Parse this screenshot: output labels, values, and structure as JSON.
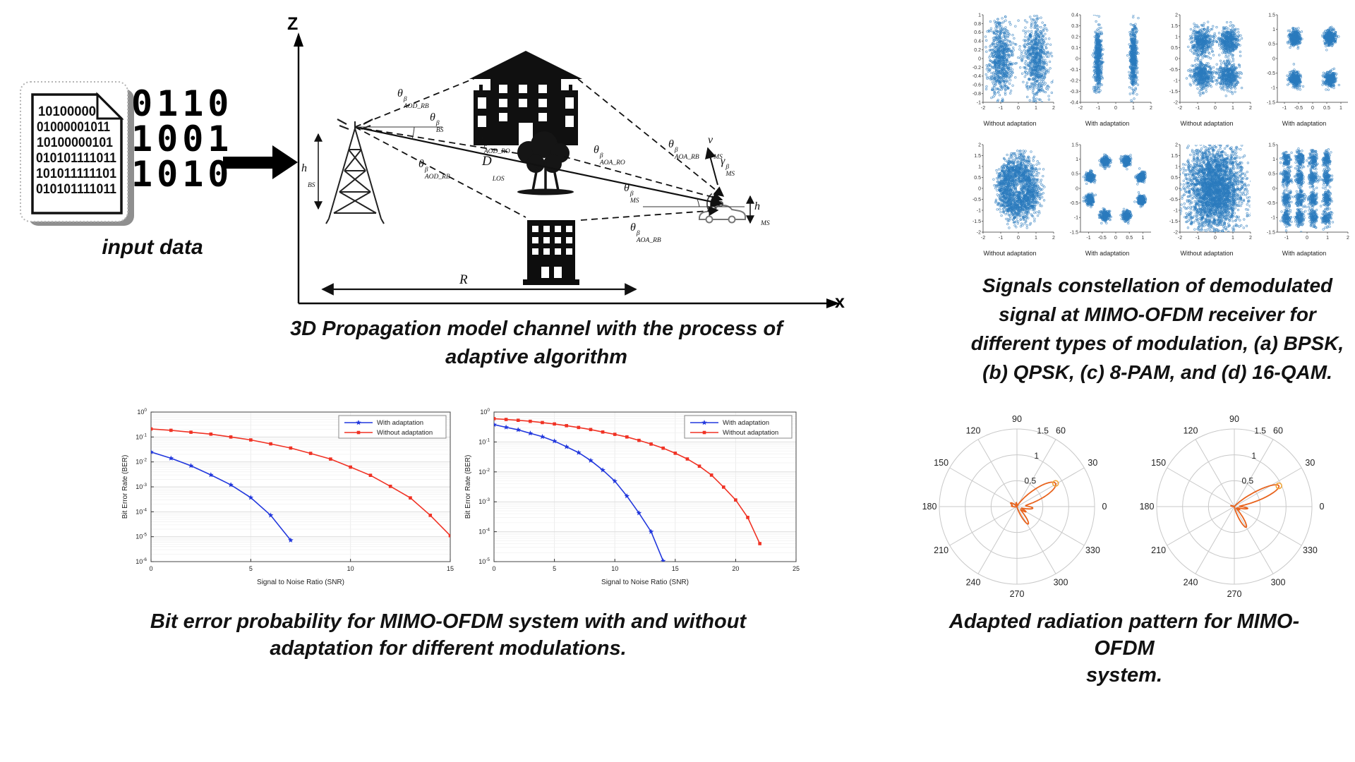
{
  "input_block": {
    "doc_lines": [
      "10100000",
      "01000001011",
      "10100000101",
      "010101111011",
      "101011111101",
      "010101111011"
    ],
    "big_bits": [
      "0110",
      "1001",
      "1010"
    ],
    "label": "input data"
  },
  "captions": {
    "diagram": [
      "3D Propagation model channel with the process of",
      "adaptive algorithm"
    ],
    "constellation": [
      "Signals constellation of demodulated",
      "signal at MIMO-OFDM receiver for",
      "different types of modulation, (a) BPSK,",
      "(b) QPSK, (c) 8-PAM, and (d) 16-QAM."
    ],
    "ber": [
      "Bit error probability for MIMO-OFDM system with and without",
      "adaptation for different modulations."
    ],
    "polar": [
      "Adapted radiation pattern for MIMO-OFDM",
      "system."
    ]
  },
  "diagram": {
    "axis": {
      "z": "Z",
      "x": "x"
    },
    "labels": {
      "aod_rb_top": {
        "base": "θ",
        "sup": "β",
        "sub": "AOD_RB"
      },
      "bs": {
        "base": "θ",
        "sup": "β",
        "sub": "BS"
      },
      "aod_ro": {
        "base": "θ",
        "sup": "β",
        "sub": "AOD_RO"
      },
      "aod_rb_bottom": {
        "base": "θ",
        "sup": "β",
        "sub": "AOD_RB"
      },
      "d_los": {
        "base": "D",
        "sup": "",
        "sub": "LOS"
      },
      "aoa_ro": {
        "base": "θ",
        "sup": "β",
        "sub": "AOA_RO"
      },
      "aoa_rb_top": {
        "base": "θ",
        "sup": "β",
        "sub": "AOA_RB"
      },
      "ms": {
        "base": "θ",
        "sup": "β",
        "sub": "MS"
      },
      "aoa_rb_bottom": {
        "base": "θ",
        "sup": "β",
        "sub": "AOA_RB"
      },
      "v_ms": {
        "base": "v",
        "sup": "",
        "sub": "MS"
      },
      "gamma_ms": {
        "base": "γ",
        "sup": "β",
        "sub": "MS"
      },
      "h_bs": {
        "base": "h",
        "sup": "",
        "sub": "BS"
      },
      "h_ms": {
        "base": "h",
        "sup": "",
        "sub": "MS"
      },
      "r": {
        "base": "R",
        "sup": "",
        "sub": ""
      }
    }
  },
  "colors": {
    "scatter_point": "#2B7BBE",
    "ber_blue": "#2238DD",
    "ber_red": "#F03224",
    "polar_line": "#E8641E",
    "polar_marker": "#F0A63C"
  },
  "chart_data": [
    {
      "id": "const-a1",
      "type": "scatter",
      "modulation": "BPSK",
      "variant": "Without adaptation",
      "xlim": [
        -2,
        2
      ],
      "ylim": [
        -1,
        1
      ],
      "xticks": [
        -2,
        -1,
        0,
        1,
        2
      ],
      "yticks": [
        1,
        0.8,
        0.6,
        0.4,
        0.2,
        0,
        -0.2,
        -0.4,
        -0.6,
        -0.8,
        -1
      ],
      "clusters": [
        {
          "x": -1,
          "y": 0,
          "sx": 0.34,
          "sy": 0.42,
          "n": 700
        },
        {
          "x": 1,
          "y": 0,
          "sx": 0.34,
          "sy": 0.42,
          "n": 700
        }
      ]
    },
    {
      "id": "const-a2",
      "type": "scatter",
      "modulation": "BPSK",
      "variant": "With adaptation",
      "xlim": [
        -2,
        2
      ],
      "ylim": [
        -0.4,
        0.4
      ],
      "xticks": [
        -2,
        -1,
        0,
        1,
        2
      ],
      "yticks": [
        0.4,
        0.3,
        0.2,
        0.1,
        0,
        -0.1,
        -0.2,
        -0.3,
        -0.4
      ],
      "clusters": [
        {
          "x": -1,
          "y": 0,
          "sx": 0.1,
          "sy": 0.14,
          "n": 500
        },
        {
          "x": 1,
          "y": 0,
          "sx": 0.1,
          "sy": 0.14,
          "n": 500
        }
      ]
    },
    {
      "id": "const-b1",
      "type": "scatter",
      "modulation": "QPSK",
      "variant": "Without adaptation",
      "xlim": [
        -2,
        2
      ],
      "ylim": [
        -2,
        2
      ],
      "xticks": [
        -2,
        -1,
        0,
        1,
        2
      ],
      "yticks": [
        2,
        1.5,
        1,
        0.5,
        0,
        -0.5,
        -1,
        -1.5,
        -2
      ],
      "clusters": [
        {
          "x": -0.75,
          "y": 0.78,
          "sx": 0.28,
          "sy": 0.3,
          "n": 420
        },
        {
          "x": 0.75,
          "y": 0.78,
          "sx": 0.28,
          "sy": 0.3,
          "n": 420
        },
        {
          "x": -0.75,
          "y": -0.78,
          "sx": 0.28,
          "sy": 0.3,
          "n": 420
        },
        {
          "x": 0.75,
          "y": -0.78,
          "sx": 0.28,
          "sy": 0.3,
          "n": 420
        }
      ]
    },
    {
      "id": "const-b2",
      "type": "scatter",
      "modulation": "QPSK",
      "variant": "With adaptation",
      "xlim": [
        -1.25,
        1.25
      ],
      "ylim": [
        -1.5,
        1.5
      ],
      "xticks": [
        -1,
        -0.5,
        0,
        0.5,
        1
      ],
      "yticks": [
        1.5,
        1,
        0.5,
        0,
        -0.5,
        -1,
        -1.5
      ],
      "clusters": [
        {
          "x": -0.62,
          "y": 0.72,
          "sx": 0.1,
          "sy": 0.13,
          "n": 320
        },
        {
          "x": 0.62,
          "y": 0.72,
          "sx": 0.1,
          "sy": 0.13,
          "n": 320
        },
        {
          "x": -0.62,
          "y": -0.72,
          "sx": 0.1,
          "sy": 0.13,
          "n": 320
        },
        {
          "x": 0.62,
          "y": -0.72,
          "sx": 0.1,
          "sy": 0.13,
          "n": 320
        }
      ]
    },
    {
      "id": "const-c1",
      "type": "scatter",
      "modulation": "8-PAM",
      "variant": "Without adaptation",
      "xlim": [
        -2,
        2
      ],
      "ylim": [
        -2,
        2
      ],
      "xticks": [
        -2,
        -1,
        0,
        1,
        2
      ],
      "yticks": [
        2,
        1.5,
        1,
        0.5,
        0,
        -0.5,
        -1,
        -1.5,
        -2
      ],
      "ring": {
        "r": 0.85,
        "sr": 0.33,
        "n": 1700,
        "xscale": 0.92,
        "yscale": 1.12
      },
      "clusters": []
    },
    {
      "id": "const-c2",
      "type": "scatter",
      "modulation": "8-PAM",
      "variant": "With adaptation",
      "xlim": [
        -1.3,
        1.3
      ],
      "ylim": [
        -1.5,
        1.5
      ],
      "xticks": [
        -1,
        -0.5,
        0,
        0.5,
        1
      ],
      "yticks": [
        1.5,
        1,
        0.5,
        0,
        -0.5,
        -1,
        -1.5
      ],
      "clusters": [
        {
          "x": 0.94,
          "y": 0.39,
          "sx": 0.075,
          "sy": 0.085,
          "n": 210
        },
        {
          "x": 0.39,
          "y": 0.94,
          "sx": 0.075,
          "sy": 0.085,
          "n": 210
        },
        {
          "x": -0.39,
          "y": 0.94,
          "sx": 0.075,
          "sy": 0.085,
          "n": 210
        },
        {
          "x": -0.94,
          "y": 0.39,
          "sx": 0.075,
          "sy": 0.085,
          "n": 210
        },
        {
          "x": -0.94,
          "y": -0.39,
          "sx": 0.075,
          "sy": 0.085,
          "n": 210
        },
        {
          "x": -0.39,
          "y": -0.94,
          "sx": 0.075,
          "sy": 0.085,
          "n": 210
        },
        {
          "x": 0.39,
          "y": -0.94,
          "sx": 0.075,
          "sy": 0.085,
          "n": 210
        },
        {
          "x": 0.94,
          "y": -0.39,
          "sx": 0.075,
          "sy": 0.085,
          "n": 210
        }
      ]
    },
    {
      "id": "const-d1",
      "type": "scatter",
      "modulation": "16-QAM",
      "variant": "Without adaptation",
      "xlim": [
        -2,
        2
      ],
      "ylim": [
        -2,
        2
      ],
      "xticks": [
        -2,
        -1,
        0,
        1,
        2
      ],
      "yticks": [
        2,
        1.5,
        1,
        0.5,
        0,
        -0.5,
        -1,
        -1.5,
        -2
      ],
      "clusters": [
        {
          "x": 0,
          "y": 0,
          "sx": 0.78,
          "sy": 0.95,
          "n": 2800
        }
      ]
    },
    {
      "id": "const-d2",
      "type": "scatter",
      "modulation": "16-QAM",
      "variant": "With adaptation",
      "xlim": [
        -1.45,
        2
      ],
      "ylim": [
        -1.5,
        1.5
      ],
      "xticks": [
        -1,
        0,
        1,
        2
      ],
      "yticks": [
        1.5,
        1,
        0.5,
        0,
        -0.5,
        -1,
        -1.5
      ],
      "grid": {
        "xs": [
          -1,
          -0.35,
          0.3,
          0.97
        ],
        "ys": [
          -1,
          -0.35,
          0.35,
          1
        ],
        "sx": 0.1,
        "sy": 0.14,
        "n": 120
      },
      "clusters": []
    },
    {
      "id": "ber-1",
      "type": "ber",
      "xlabel": "Signal to Noise Ratio (SNR)",
      "ylabel": "Bit Error Rate (BER)",
      "xlim": [
        0,
        15
      ],
      "xticks": [
        0,
        5,
        10,
        15
      ],
      "ymax_exp": 0,
      "ymin_exp": -6,
      "series": [
        {
          "name": "With adaptation",
          "color": "#2238DD",
          "marker": "star",
          "x": [
            0,
            1,
            2,
            3,
            4,
            5,
            6,
            7
          ],
          "y": [
            0.025,
            0.014,
            0.007,
            0.003,
            0.0012,
            0.00037,
            7.2e-05,
            7.2e-06
          ]
        },
        {
          "name": "Without adaptation",
          "color": "#F03224",
          "marker": "square",
          "x": [
            0,
            1,
            2,
            3,
            4,
            5,
            6,
            7,
            8,
            9,
            10,
            11,
            12,
            13,
            14,
            15
          ],
          "y": [
            0.21,
            0.185,
            0.155,
            0.13,
            0.1,
            0.076,
            0.053,
            0.036,
            0.022,
            0.013,
            0.0062,
            0.0029,
            0.00105,
            0.00036,
            7.2e-05,
            1.1e-05
          ]
        }
      ]
    },
    {
      "id": "ber-2",
      "type": "ber",
      "xlabel": "Signal to Noise Ratio (SNR)",
      "ylabel": "Bit Error Rate (BER)",
      "xlim": [
        0,
        25
      ],
      "xticks": [
        0,
        5,
        10,
        15,
        20,
        25
      ],
      "ymax_exp": 0,
      "ymin_exp": -5,
      "series": [
        {
          "name": "With adaptation",
          "color": "#2238DD",
          "marker": "star",
          "x": [
            0,
            1,
            2,
            3,
            4,
            5,
            6,
            7,
            8,
            9,
            10,
            11,
            12,
            13,
            14
          ],
          "y": [
            0.38,
            0.31,
            0.255,
            0.195,
            0.15,
            0.107,
            0.069,
            0.044,
            0.024,
            0.0115,
            0.0049,
            0.00155,
            0.00042,
            0.0001,
            1.05e-05
          ]
        },
        {
          "name": "Without adaptation",
          "color": "#F03224",
          "marker": "square",
          "x": [
            0,
            1,
            2,
            3,
            4,
            5,
            6,
            7,
            8,
            9,
            10,
            11,
            12,
            13,
            14,
            15,
            16,
            17,
            18,
            19,
            20,
            21,
            22
          ],
          "y": [
            0.6,
            0.565,
            0.53,
            0.49,
            0.445,
            0.4,
            0.35,
            0.305,
            0.26,
            0.215,
            0.18,
            0.147,
            0.113,
            0.085,
            0.062,
            0.042,
            0.027,
            0.0155,
            0.0078,
            0.0031,
            0.00115,
            0.0003,
            4e-05
          ]
        }
      ]
    },
    {
      "id": "polar-1",
      "type": "polar",
      "rmax": 1.5,
      "rticks": [
        0.5,
        1,
        1.5
      ],
      "angle_labels": [
        0,
        30,
        60,
        90,
        120,
        150,
        180,
        210,
        240,
        270,
        300,
        330
      ],
      "radial_label_angle": 76,
      "color": "#E8641E",
      "marker_color": "#F0A63C",
      "lobes": [
        {
          "deg": 31,
          "amp": 0.87,
          "w": 12
        },
        {
          "deg": -6,
          "amp": 0.3,
          "w": 7
        },
        {
          "deg": -30,
          "amp": 0.2,
          "w": 6
        },
        {
          "deg": -57,
          "amp": 0.4,
          "w": 8
        },
        {
          "deg": 150,
          "amp": 0.14,
          "w": 10
        },
        {
          "deg": 175,
          "amp": 0.1,
          "w": 8
        },
        {
          "deg": 100,
          "amp": 0.08,
          "w": 8
        }
      ],
      "peak": {
        "deg": 31,
        "amp": 0.87
      }
    },
    {
      "id": "polar-2",
      "type": "polar",
      "rmax": 1.5,
      "rticks": [
        0.5,
        1,
        1.5
      ],
      "angle_labels": [
        0,
        30,
        60,
        90,
        120,
        150,
        180,
        210,
        240,
        270,
        300,
        330
      ],
      "radial_label_angle": 76,
      "color": "#E8641E",
      "marker_color": "#F0A63C",
      "lobes": [
        {
          "deg": 25,
          "amp": 0.95,
          "w": 9
        },
        {
          "deg": -8,
          "amp": 0.26,
          "w": 6
        },
        {
          "deg": -60,
          "amp": 0.46,
          "w": 8
        },
        {
          "deg": -30,
          "amp": 0.12,
          "w": 6
        },
        {
          "deg": 165,
          "amp": 0.07,
          "w": 7
        }
      ],
      "peak": {
        "deg": 25,
        "amp": 0.95
      }
    }
  ]
}
